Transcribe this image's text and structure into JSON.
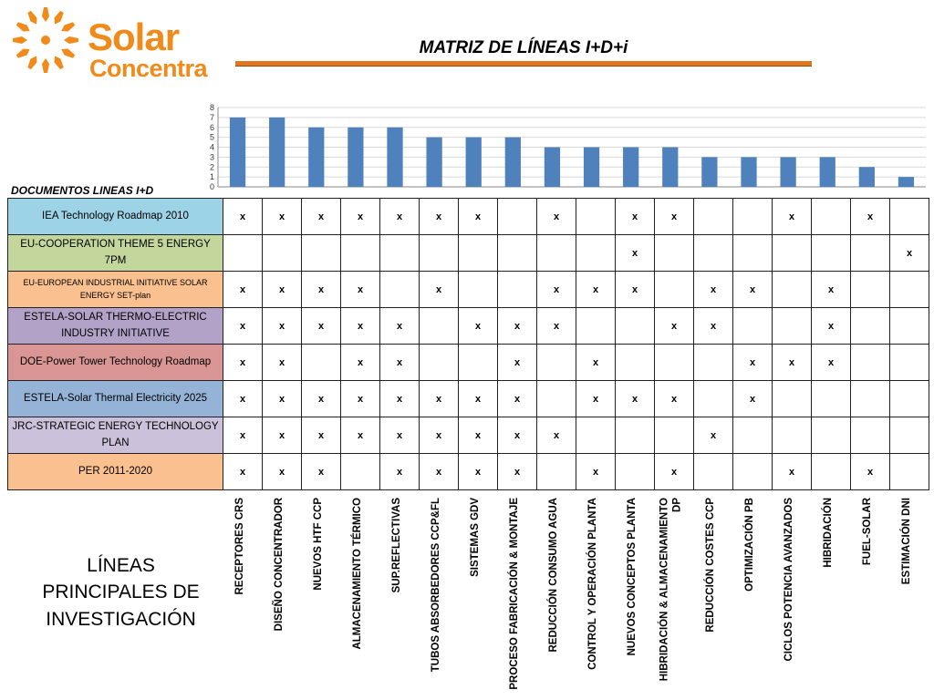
{
  "logo": {
    "line1": "Solar",
    "line2": "Concentra"
  },
  "title": "MATRIZ DE LÍNEAS I+D+i",
  "docs_heading": "DOCUMENTOS LINEAS I+D",
  "footer_title": "LÍNEAS PRINCIPALES DE INVESTIGACIÓN",
  "colors": {
    "brand": "#F08A1A",
    "bar": "#4F81BD",
    "underline": "#E0761E"
  },
  "chart_data": {
    "type": "bar",
    "categories": [
      "RECEPTORES CRS",
      "DISEÑO CONCENTRADOR",
      "NUEVOS HTF CCP",
      "ALMACENAMIENTO TÉRMICO",
      "SUP.REFLECTIVAS",
      "TUBOS ABSORBEDORES CCP&FL",
      "SISTEMAS GDV",
      "PROCESO FABRICACIÓN & MONTAJE",
      "REDUCCIÓN CONSUMO AGUA",
      "CONTROL Y OPERACIÓN PLANTA",
      "NUEVOS CONCEPTOS PLANTA",
      "HIBRIDACIÓN & ALMACENAMIENTO DP",
      "REDUCCIÓN COSTES CCP",
      "OPTIMIZACIÓN PB",
      "CICLOS POTENCIA AVANZADOS",
      "HIBRIDACIÓN",
      "FUEL-SOLAR",
      "ESTIMACIÓN DNI"
    ],
    "values": [
      7,
      7,
      6,
      6,
      6,
      5,
      5,
      5,
      4,
      4,
      4,
      4,
      3,
      3,
      3,
      3,
      2,
      1
    ],
    "ylim": [
      0,
      8
    ],
    "yticks": [
      "0",
      "1",
      "2",
      "3",
      "4",
      "5",
      "6",
      "7",
      "8"
    ],
    "grid": true
  },
  "matrix": {
    "mark": "x",
    "rows": [
      {
        "label": "IEA Technology Roadmap 2010",
        "color": "#9DD3E6",
        "small": false,
        "cells": [
          "x",
          "x",
          "x",
          "x",
          "x",
          "x",
          "x",
          "",
          "x",
          "",
          "x",
          "x",
          "",
          "",
          "x",
          "",
          "x",
          ""
        ]
      },
      {
        "label": "EU-COOPERATION THEME 5 ENERGY 7PM",
        "color": "#C3D69B",
        "small": false,
        "cells": [
          "",
          "",
          "",
          "",
          "",
          "",
          "",
          "",
          "",
          "",
          "x",
          "",
          "",
          "",
          "",
          "",
          "",
          "x"
        ]
      },
      {
        "label": "EU-EUROPEAN INDUSTRIAL INITIATIVE SOLAR ENERGY SET-plan",
        "color": "#FAC090",
        "small": true,
        "cells": [
          "x",
          "x",
          "x",
          "x",
          "",
          "x",
          "",
          "",
          "x",
          "x",
          "x",
          "",
          "x",
          "x",
          "",
          "x",
          "",
          ""
        ]
      },
      {
        "label": "ESTELA-SOLAR THERMO-ELECTRIC INDUSTRY INITIATIVE",
        "color": "#B3A2C7",
        "small": false,
        "cells": [
          "x",
          "x",
          "x",
          "x",
          "x",
          "",
          "x",
          "x",
          "x",
          "",
          "",
          "x",
          "x",
          "",
          "",
          "x",
          "",
          ""
        ]
      },
      {
        "label": "DOE-Power Tower Technology Roadmap",
        "color": "#D99694",
        "small": false,
        "cells": [
          "x",
          "x",
          "",
          "x",
          "x",
          "",
          "",
          "x",
          "",
          "x",
          "",
          "",
          "",
          "x",
          "x",
          "x",
          "",
          ""
        ]
      },
      {
        "label": "ESTELA-Solar Thermal Electricity 2025",
        "color": "#95B3D7",
        "small": false,
        "cells": [
          "x",
          "x",
          "x",
          "x",
          "x",
          "x",
          "x",
          "x",
          "",
          "x",
          "x",
          "x",
          "",
          "x",
          "",
          "",
          "",
          ""
        ]
      },
      {
        "label": "JRC-STRATEGIC ENERGY TECHNOLOGY PLAN",
        "color": "#CCC1DA",
        "small": false,
        "cells": [
          "x",
          "x",
          "x",
          "x",
          "x",
          "x",
          "x",
          "x",
          "x",
          "",
          "",
          "",
          "x",
          "",
          "",
          "",
          "",
          ""
        ]
      },
      {
        "label": "PER 2011-2020",
        "color": "#FAC090",
        "small": false,
        "cells": [
          "x",
          "x",
          "x",
          "",
          "x",
          "x",
          "x",
          "x",
          "",
          "x",
          "",
          "x",
          "",
          "",
          "x",
          "",
          "x",
          ""
        ]
      }
    ]
  }
}
